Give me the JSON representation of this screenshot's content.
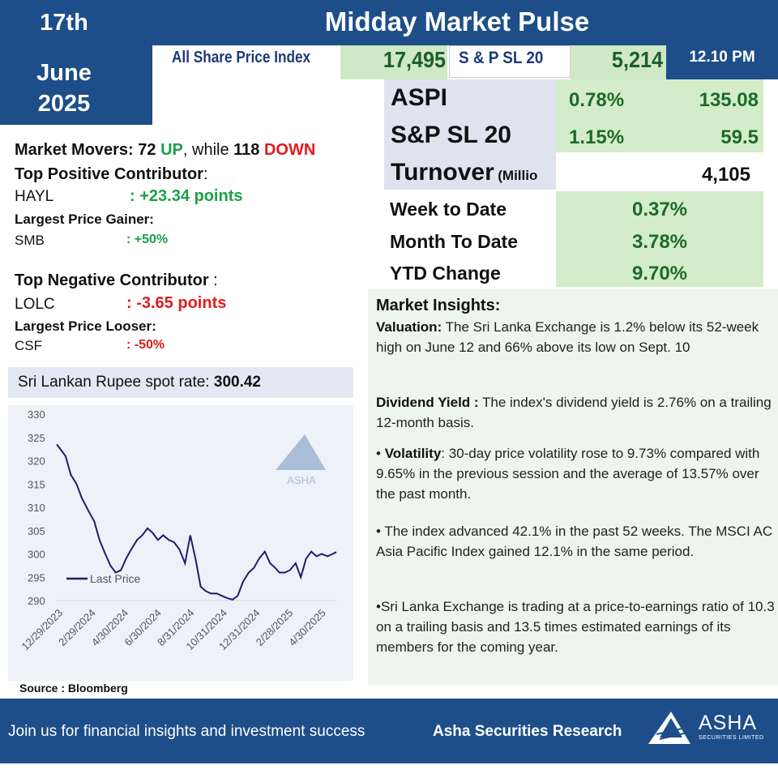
{
  "header": {
    "day": "17th",
    "month": "June",
    "year": "2025",
    "title": "Midday Market Pulse",
    "time": "12.10 PM"
  },
  "indices": {
    "aspi_label": "All Share Price Index",
    "aspi_value": "17,495",
    "sp_label": "S & P SL 20",
    "sp_value": "5,214"
  },
  "stats": {
    "aspi_label": "ASPI",
    "aspi_pct": "0.78%",
    "aspi_points": "135.08",
    "sp_label": "S&P SL 20",
    "sp_pct": "1.15%",
    "sp_points": "59.5",
    "turnover_label": "Turnover",
    "turnover_unit": "(Millio",
    "turnover_value": "4,105"
  },
  "performance": [
    {
      "label": "Week to Date",
      "value": "0.37%"
    },
    {
      "label": "Month To Date",
      "value": "3.78%"
    },
    {
      "label": "YTD Change",
      "value": "9.70%"
    }
  ],
  "movers": {
    "prefix": "Market Movers: ",
    "up_count": "72",
    "up_label": "UP",
    "middle": ", while ",
    "down_count": "118",
    "down_label": "DOWN"
  },
  "contributors": {
    "pos_title": "Top Positive Contributor",
    "pos_colon": ":",
    "pos_name": "HAYL",
    "pos_value": ": +23.34 points",
    "gainer_title": "Largest Price Gainer:",
    "gainer_name": "SMB",
    "gainer_value": ": +50%",
    "neg_title": "Top Negative Contributor",
    "neg_colon": " :",
    "neg_name": "LOLC",
    "neg_value": ": -3.65 points",
    "looser_title": "Largest Price Looser:",
    "looser_name": "CSF",
    "looser_value": ": -50%"
  },
  "fx": {
    "label": "Sri Lankan Rupee spot rate: ",
    "value": "300.42"
  },
  "source": "Source : Bloomberg",
  "insights": {
    "title": "Market Insights:",
    "valuation_label": "Valuation:",
    "valuation_text": " The Sri Lanka Exchange is 1.2% below its 52-week high on June 12 and 66% above its low on Sept. 10",
    "dividend_label": "Dividend Yield :",
    "dividend_text": " The index's dividend yield is 2.76% on a trailing 12-month basis.",
    "volatility_bullet": "• ",
    "volatility_label": "Volatility",
    "volatility_text": ": 30-day price volatility rose to 9.73% compared with 9.65% in the previous session and the average of 13.57% over the past month.",
    "advance_text": "• The index advanced 42.1% in the past 52 weeks. The MSCI AC Asia Pacific Index gained 12.1% in the same period.",
    "pe_text": "•Sri Lanka Exchange is trading at a price-to-earnings ratio of 10.3 on a trailing basis and 13.5 times estimated earnings of its members for the coming year."
  },
  "footer": {
    "tagline": "Join us for financial insights and investment success",
    "brand": "Asha Securities Research",
    "logo_text": "ASHA",
    "logo_sub": "SECURITIES LIMITED"
  },
  "colors": {
    "navy": "#1d4e89",
    "green_bg": "#d4ecc9",
    "green_text": "#1c6b2a",
    "up": "#1aa046",
    "down": "#e21b1b",
    "line": "#1b1f6b"
  },
  "chart_data": {
    "type": "line",
    "title": "",
    "xlabel": "",
    "ylabel": "",
    "ylim": [
      290,
      330
    ],
    "yticks": [
      290,
      295,
      300,
      305,
      310,
      315,
      320,
      325,
      330
    ],
    "xtick_labels": [
      "12/29/2023",
      "2/29/2024",
      "4/30/2024",
      "6/30/2024",
      "8/31/2024",
      "10/31/2024",
      "12/31/2024",
      "2/28/2025",
      "4/30/2025"
    ],
    "legend": "Last Price",
    "legend_position": "bottom-left",
    "watermark": "ASHA",
    "series": [
      {
        "name": "Last Price",
        "x": [
          "2023-12-29",
          "2024-01-05",
          "2024-01-15",
          "2024-01-25",
          "2024-02-05",
          "2024-02-15",
          "2024-02-29",
          "2024-03-10",
          "2024-03-20",
          "2024-03-31",
          "2024-04-10",
          "2024-04-20",
          "2024-04-30",
          "2024-05-10",
          "2024-05-20",
          "2024-05-31",
          "2024-06-10",
          "2024-06-20",
          "2024-06-30",
          "2024-07-10",
          "2024-07-20",
          "2024-07-31",
          "2024-08-10",
          "2024-08-20",
          "2024-08-31",
          "2024-09-10",
          "2024-09-20",
          "2024-09-30",
          "2024-10-10",
          "2024-10-20",
          "2024-10-31",
          "2024-11-10",
          "2024-11-20",
          "2024-11-30",
          "2024-12-10",
          "2024-12-20",
          "2024-12-31",
          "2025-01-10",
          "2025-01-20",
          "2025-01-31",
          "2025-02-10",
          "2025-02-20",
          "2025-02-28",
          "2025-03-10",
          "2025-03-20",
          "2025-03-31",
          "2025-04-10",
          "2025-04-20",
          "2025-04-30",
          "2025-05-10",
          "2025-05-20",
          "2025-05-31",
          "2025-06-10",
          "2025-06-17"
        ],
        "values": [
          323.5,
          322.5,
          321,
          317,
          315,
          312,
          309,
          307,
          303,
          300,
          297.5,
          296,
          296.5,
          299,
          301,
          303,
          304,
          305.5,
          304.5,
          303,
          304,
          303,
          302.5,
          301,
          298,
          304,
          299,
          293,
          292,
          291.5,
          291.5,
          291,
          290.5,
          290.2,
          291,
          294,
          296,
          297,
          299,
          300.5,
          298,
          297,
          296,
          296,
          296.5,
          298,
          295,
          299,
          300.5,
          299.5,
          300,
          299.5,
          300,
          300.4
        ]
      }
    ]
  }
}
